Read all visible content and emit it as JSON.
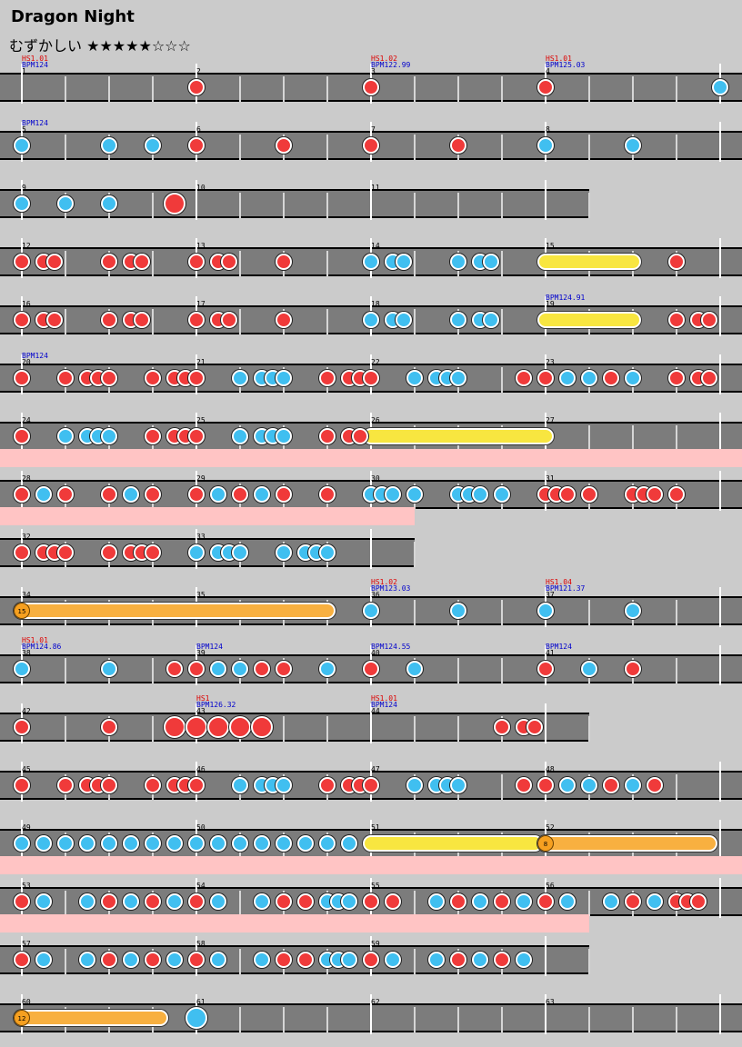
{
  "song": {
    "title": "Dragon Night",
    "difficulty_label": "むずかしい",
    "stars_filled": 5,
    "stars_total": 8
  },
  "rows": [
    {
      "measures": [
        {
          "num": "1",
          "bpm": "BPM124",
          "hs": "HS1.01"
        },
        {
          "num": "2"
        },
        {
          "num": "3",
          "bpm": "BPM122.99",
          "hs": "HS1.02"
        },
        {
          "num": "4",
          "bpm": "BPM125.03",
          "hs": "HS1.01"
        }
      ],
      "notes": [
        [
          24,
          "d"
        ],
        [
          48,
          "d"
        ],
        [
          72,
          "d"
        ],
        [
          96,
          "k"
        ]
      ]
    },
    {
      "measures": [
        {
          "num": "5",
          "bpm": "BPM124"
        },
        {
          "num": "6"
        },
        {
          "num": "7"
        },
        {
          "num": "8"
        }
      ],
      "notes": [
        [
          0,
          "k"
        ],
        [
          12,
          "k"
        ],
        [
          18,
          "k"
        ],
        [
          24,
          "d"
        ],
        [
          36,
          "d"
        ],
        [
          48,
          "d"
        ],
        [
          60,
          "d"
        ],
        [
          72,
          "k"
        ],
        [
          84,
          "k"
        ]
      ]
    },
    {
      "measures": [
        {
          "num": "9"
        },
        {
          "num": "10"
        },
        {
          "num": "11"
        }
      ],
      "length": 78,
      "notes": [
        [
          0,
          "k"
        ],
        [
          6,
          "k"
        ],
        [
          12,
          "k"
        ],
        [
          21,
          "D"
        ]
      ]
    },
    {
      "measures": [
        {
          "num": "12"
        },
        {
          "num": "13"
        },
        {
          "num": "14"
        },
        {
          "num": "15"
        }
      ],
      "notes": [
        [
          0,
          "d"
        ],
        [
          3,
          "d"
        ],
        [
          4.5,
          "d"
        ],
        [
          12,
          "d"
        ],
        [
          15,
          "d"
        ],
        [
          16.5,
          "d"
        ],
        [
          24,
          "d"
        ],
        [
          27,
          "d"
        ],
        [
          28.5,
          "d"
        ],
        [
          36,
          "d"
        ],
        [
          48,
          "k"
        ],
        [
          51,
          "k"
        ],
        [
          52.5,
          "k"
        ],
        [
          60,
          "k"
        ],
        [
          63,
          "k"
        ],
        [
          64.5,
          "k"
        ],
        [
          90,
          "d"
        ]
      ],
      "rolls": [
        [
          72,
          84,
          "yellow"
        ]
      ]
    },
    {
      "measures": [
        {
          "num": "16"
        },
        {
          "num": "17"
        },
        {
          "num": "18"
        },
        {
          "num": "19",
          "bpm": "BPM124.91"
        }
      ],
      "notes": [
        [
          0,
          "d"
        ],
        [
          3,
          "d"
        ],
        [
          4.5,
          "d"
        ],
        [
          12,
          "d"
        ],
        [
          15,
          "d"
        ],
        [
          16.5,
          "d"
        ],
        [
          24,
          "d"
        ],
        [
          27,
          "d"
        ],
        [
          28.5,
          "d"
        ],
        [
          36,
          "d"
        ],
        [
          48,
          "k"
        ],
        [
          51,
          "k"
        ],
        [
          52.5,
          "k"
        ],
        [
          60,
          "k"
        ],
        [
          63,
          "k"
        ],
        [
          64.5,
          "k"
        ],
        [
          90,
          "d"
        ],
        [
          93,
          "d"
        ],
        [
          94.5,
          "d"
        ]
      ],
      "rolls": [
        [
          72,
          84,
          "yellow"
        ]
      ]
    },
    {
      "measures": [
        {
          "num": "20",
          "bpm": "BPM124"
        },
        {
          "num": "21"
        },
        {
          "num": "22"
        },
        {
          "num": "23"
        }
      ],
      "notes": [
        [
          0,
          "d"
        ],
        [
          6,
          "d"
        ],
        [
          9,
          "d"
        ],
        [
          10.5,
          "d"
        ],
        [
          12,
          "d"
        ],
        [
          18,
          "d"
        ],
        [
          21,
          "d"
        ],
        [
          22.5,
          "d"
        ],
        [
          24,
          "d"
        ],
        [
          30,
          "k"
        ],
        [
          33,
          "k"
        ],
        [
          34.5,
          "k"
        ],
        [
          36,
          "k"
        ],
        [
          42,
          "d"
        ],
        [
          45,
          "d"
        ],
        [
          46.5,
          "d"
        ],
        [
          48,
          "d"
        ],
        [
          54,
          "k"
        ],
        [
          57,
          "k"
        ],
        [
          58.5,
          "k"
        ],
        [
          60,
          "k"
        ],
        [
          69,
          "d"
        ],
        [
          72,
          "d"
        ],
        [
          75,
          "k"
        ],
        [
          78,
          "k"
        ],
        [
          81,
          "d"
        ],
        [
          84,
          "k"
        ],
        [
          90,
          "d"
        ],
        [
          93,
          "d"
        ],
        [
          94.5,
          "d"
        ]
      ]
    },
    {
      "measures": [
        {
          "num": "24"
        },
        {
          "num": "25"
        },
        {
          "num": "26"
        },
        {
          "num": "27"
        }
      ],
      "notes": [
        [
          0,
          "d"
        ],
        [
          6,
          "k"
        ],
        [
          9,
          "k"
        ],
        [
          10.5,
          "k"
        ],
        [
          12,
          "k"
        ],
        [
          18,
          "d"
        ],
        [
          21,
          "d"
        ],
        [
          22.5,
          "d"
        ],
        [
          24,
          "d"
        ],
        [
          30,
          "k"
        ],
        [
          33,
          "k"
        ],
        [
          34.5,
          "k"
        ],
        [
          36,
          "k"
        ],
        [
          42,
          "d"
        ],
        [
          45,
          "d"
        ],
        [
          46.5,
          "d"
        ]
      ],
      "rolls": [
        [
          48,
          72,
          "yellow"
        ]
      ]
    },
    {
      "measures": [
        {
          "num": "28"
        },
        {
          "num": "29"
        },
        {
          "num": "30"
        },
        {
          "num": "31"
        }
      ],
      "gogo": 102,
      "notes": [
        [
          0,
          "d"
        ],
        [
          3,
          "k"
        ],
        [
          6,
          "d"
        ],
        [
          12,
          "d"
        ],
        [
          15,
          "k"
        ],
        [
          18,
          "d"
        ],
        [
          24,
          "d"
        ],
        [
          27,
          "k"
        ],
        [
          30,
          "d"
        ],
        [
          33,
          "k"
        ],
        [
          36,
          "d"
        ],
        [
          42,
          "d"
        ],
        [
          48,
          "k"
        ],
        [
          49.5,
          "k"
        ],
        [
          51,
          "k"
        ],
        [
          54,
          "k"
        ],
        [
          60,
          "k"
        ],
        [
          61.5,
          "k"
        ],
        [
          63,
          "k"
        ],
        [
          66,
          "k"
        ],
        [
          72,
          "d"
        ],
        [
          73.5,
          "d"
        ],
        [
          75,
          "d"
        ],
        [
          78,
          "d"
        ],
        [
          84,
          "d"
        ],
        [
          85.5,
          "d"
        ],
        [
          87,
          "d"
        ],
        [
          90,
          "d"
        ]
      ]
    },
    {
      "measures": [
        {
          "num": "32"
        },
        {
          "num": "33"
        }
      ],
      "length": 54,
      "gogo": 54,
      "notes": [
        [
          0,
          "d"
        ],
        [
          3,
          "d"
        ],
        [
          4.5,
          "d"
        ],
        [
          6,
          "d"
        ],
        [
          12,
          "d"
        ],
        [
          15,
          "d"
        ],
        [
          16.5,
          "d"
        ],
        [
          18,
          "d"
        ],
        [
          24,
          "k"
        ],
        [
          27,
          "k"
        ],
        [
          28.5,
          "k"
        ],
        [
          30,
          "k"
        ],
        [
          36,
          "k"
        ],
        [
          39,
          "k"
        ],
        [
          40.5,
          "k"
        ],
        [
          42,
          "k"
        ]
      ]
    },
    {
      "measures": [
        {
          "num": "34"
        },
        {
          "num": "35"
        },
        {
          "num": "36",
          "bpm": "BPM123.03",
          "hs": "HS1.02"
        },
        {
          "num": "37",
          "bpm": "BPM121.37",
          "hs": "HS1.04"
        }
      ],
      "notes": [
        [
          48,
          "k"
        ],
        [
          60,
          "k"
        ],
        [
          72,
          "k"
        ],
        [
          84,
          "k"
        ]
      ],
      "rolls": [
        [
          0,
          42,
          "orange",
          "15"
        ]
      ]
    },
    {
      "measures": [
        {
          "num": "38",
          "bpm": "BPM124.86",
          "hs": "HS1.01"
        },
        {
          "num": "39",
          "bpm": "BPM124"
        },
        {
          "num": "40",
          "bpm": "BPM124.55"
        },
        {
          "num": "41",
          "bpm": "BPM124"
        }
      ],
      "notes": [
        [
          0,
          "k"
        ],
        [
          12,
          "k"
        ],
        [
          21,
          "d"
        ],
        [
          24,
          "d"
        ],
        [
          27,
          "k"
        ],
        [
          30,
          "k"
        ],
        [
          33,
          "d"
        ],
        [
          36,
          "d"
        ],
        [
          42,
          "k"
        ],
        [
          48,
          "d"
        ],
        [
          54,
          "k"
        ],
        [
          72,
          "d"
        ],
        [
          78,
          "k"
        ],
        [
          84,
          "d"
        ]
      ]
    },
    {
      "measures": [
        {
          "num": "42"
        },
        {
          "num": "43",
          "bpm": "BPM126.32",
          "hs": "HS1"
        },
        {
          "num": "44",
          "bpm": "BPM124",
          "hs": "HS1.01"
        }
      ],
      "length": 78,
      "notes": [
        [
          0,
          "d"
        ],
        [
          12,
          "d"
        ],
        [
          21,
          "D"
        ],
        [
          24,
          "D"
        ],
        [
          27,
          "D"
        ],
        [
          30,
          "D"
        ],
        [
          33,
          "D"
        ],
        [
          66,
          "d"
        ],
        [
          69,
          "d"
        ],
        [
          70.5,
          "d"
        ]
      ]
    },
    {
      "measures": [
        {
          "num": "45"
        },
        {
          "num": "46"
        },
        {
          "num": "47"
        },
        {
          "num": "48"
        }
      ],
      "notes": [
        [
          0,
          "d"
        ],
        [
          6,
          "d"
        ],
        [
          9,
          "d"
        ],
        [
          10.5,
          "d"
        ],
        [
          12,
          "d"
        ],
        [
          18,
          "d"
        ],
        [
          21,
          "d"
        ],
        [
          22.5,
          "d"
        ],
        [
          24,
          "d"
        ],
        [
          30,
          "k"
        ],
        [
          33,
          "k"
        ],
        [
          34.5,
          "k"
        ],
        [
          36,
          "k"
        ],
        [
          42,
          "d"
        ],
        [
          45,
          "d"
        ],
        [
          46.5,
          "d"
        ],
        [
          48,
          "d"
        ],
        [
          54,
          "k"
        ],
        [
          57,
          "k"
        ],
        [
          58.5,
          "k"
        ],
        [
          60,
          "k"
        ],
        [
          69,
          "d"
        ],
        [
          72,
          "d"
        ],
        [
          75,
          "k"
        ],
        [
          78,
          "k"
        ],
        [
          81,
          "d"
        ],
        [
          84,
          "k"
        ],
        [
          87,
          "d"
        ]
      ]
    },
    {
      "measures": [
        {
          "num": "49"
        },
        {
          "num": "50"
        },
        {
          "num": "51"
        },
        {
          "num": "52"
        }
      ],
      "notes": [
        [
          0,
          "k"
        ],
        [
          3,
          "k"
        ],
        [
          6,
          "k"
        ],
        [
          9,
          "k"
        ],
        [
          12,
          "k"
        ],
        [
          15,
          "k"
        ],
        [
          18,
          "k"
        ],
        [
          21,
          "k"
        ],
        [
          24,
          "k"
        ],
        [
          27,
          "k"
        ],
        [
          30,
          "k"
        ],
        [
          33,
          "k"
        ],
        [
          36,
          "k"
        ],
        [
          39,
          "k"
        ],
        [
          42,
          "k"
        ],
        [
          45,
          "k"
        ]
      ],
      "rolls": [
        [
          48,
          70.5,
          "yellow"
        ],
        [
          72,
          94.5,
          "orange",
          "8"
        ]
      ]
    },
    {
      "measures": [
        {
          "num": "53"
        },
        {
          "num": "54"
        },
        {
          "num": "55"
        },
        {
          "num": "56"
        }
      ],
      "gogo": 102,
      "notes": [
        [
          0,
          "d"
        ],
        [
          3,
          "k"
        ],
        [
          9,
          "k"
        ],
        [
          12,
          "d"
        ],
        [
          15,
          "k"
        ],
        [
          18,
          "d"
        ],
        [
          21,
          "k"
        ],
        [
          24,
          "d"
        ],
        [
          27,
          "k"
        ],
        [
          33,
          "k"
        ],
        [
          36,
          "d"
        ],
        [
          39,
          "d"
        ],
        [
          42,
          "k"
        ],
        [
          43.5,
          "k"
        ],
        [
          45,
          "k"
        ],
        [
          48,
          "d"
        ],
        [
          51,
          "d"
        ],
        [
          57,
          "k"
        ],
        [
          60,
          "d"
        ],
        [
          63,
          "k"
        ],
        [
          66,
          "d"
        ],
        [
          69,
          "k"
        ],
        [
          72,
          "d"
        ],
        [
          75,
          "k"
        ],
        [
          81,
          "k"
        ],
        [
          84,
          "d"
        ],
        [
          87,
          "k"
        ],
        [
          90,
          "d"
        ],
        [
          91.5,
          "d"
        ],
        [
          93,
          "d"
        ]
      ]
    },
    {
      "measures": [
        {
          "num": "57"
        },
        {
          "num": "58"
        },
        {
          "num": "59"
        }
      ],
      "length": 78,
      "gogo": 78,
      "notes": [
        [
          0,
          "d"
        ],
        [
          3,
          "k"
        ],
        [
          9,
          "k"
        ],
        [
          12,
          "d"
        ],
        [
          15,
          "k"
        ],
        [
          18,
          "d"
        ],
        [
          21,
          "k"
        ],
        [
          24,
          "d"
        ],
        [
          27,
          "k"
        ],
        [
          33,
          "k"
        ],
        [
          36,
          "d"
        ],
        [
          39,
          "d"
        ],
        [
          42,
          "k"
        ],
        [
          43.5,
          "k"
        ],
        [
          45,
          "k"
        ],
        [
          48,
          "d"
        ],
        [
          51,
          "k"
        ],
        [
          57,
          "k"
        ],
        [
          60,
          "d"
        ],
        [
          63,
          "k"
        ],
        [
          66,
          "d"
        ],
        [
          69,
          "k"
        ]
      ]
    },
    {
      "measures": [
        {
          "num": "60"
        },
        {
          "num": "61"
        },
        {
          "num": "62"
        },
        {
          "num": "63"
        }
      ],
      "notes": [
        [
          24,
          "K"
        ]
      ],
      "rolls": [
        [
          0,
          19,
          "orange",
          "12"
        ]
      ]
    }
  ]
}
